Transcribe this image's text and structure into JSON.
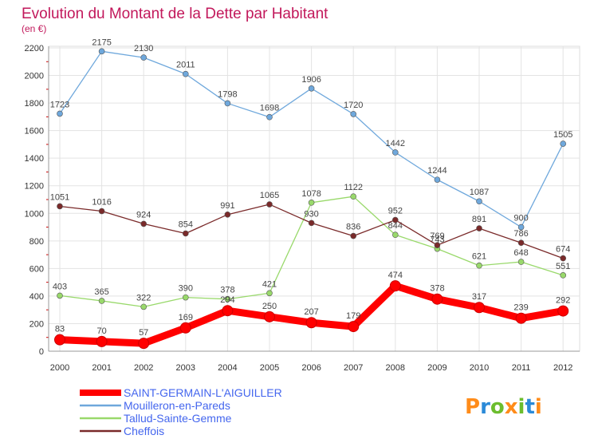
{
  "chart_data": {
    "type": "line",
    "title": "Evolution du Montant de la Dette par Habitant",
    "subtitle": "(en €)",
    "categories": [
      "2000",
      "2001",
      "2002",
      "2003",
      "2004",
      "2005",
      "2006",
      "2007",
      "2008",
      "2009",
      "2010",
      "2011",
      "2012"
    ],
    "ylim": [
      0,
      2200
    ],
    "yticks": [
      0,
      200,
      400,
      600,
      800,
      1000,
      1200,
      1400,
      1600,
      1800,
      2000,
      2200
    ],
    "grid": true,
    "legend_position": "bottom-left",
    "series": [
      {
        "name": "SAINT-GERMAIN-L'AIGUILLER",
        "color": "#ff0000",
        "values": [
          83,
          70,
          57,
          169,
          294,
          250,
          207,
          179,
          474,
          378,
          317,
          239,
          292
        ]
      },
      {
        "name": "Mouilleron-en-Pareds",
        "color": "#6fa8dc",
        "values": [
          1723,
          2175,
          2130,
          2011,
          1798,
          1698,
          1906,
          1720,
          1442,
          1244,
          1087,
          900,
          1505
        ]
      },
      {
        "name": "Tallud-Sainte-Gemme",
        "color": "#99d96b",
        "values": [
          403,
          365,
          322,
          390,
          378,
          421,
          1078,
          1122,
          844,
          743,
          621,
          648,
          551
        ]
      },
      {
        "name": "Cheffois",
        "color": "#7a2a2a",
        "values": [
          1051,
          1016,
          924,
          854,
          991,
          1065,
          930,
          836,
          952,
          769,
          891,
          786,
          674
        ]
      }
    ],
    "brand": "Proxiti"
  }
}
